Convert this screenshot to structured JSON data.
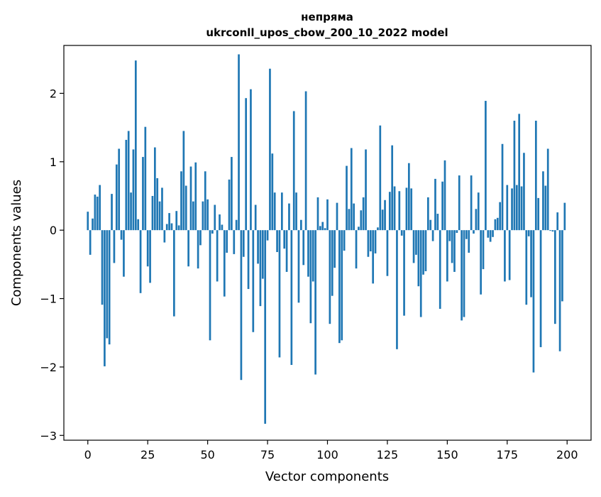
{
  "chart_data": {
    "type": "bar",
    "title_line1": "непряма",
    "title_line2": "ukrconll_upos_cbow_200_10_2022 model",
    "xlabel": "Vector components",
    "ylabel": "Components values",
    "xlim": [
      -10,
      210
    ],
    "ylim": [
      -3.07,
      2.7
    ],
    "x_ticks": [
      0,
      25,
      50,
      75,
      100,
      125,
      150,
      175,
      200
    ],
    "y_ticks": [
      -3,
      -2,
      -1,
      0,
      1,
      2
    ],
    "x_tick_labels": [
      "0",
      "25",
      "50",
      "75",
      "100",
      "125",
      "150",
      "175",
      "200"
    ],
    "y_tick_labels": [
      "−3",
      "−2",
      "−1",
      "0",
      "1",
      "2"
    ],
    "bar_color": "#1f77b4",
    "values": [
      0.27,
      -0.36,
      0.17,
      0.52,
      0.49,
      0.66,
      -1.09,
      -1.99,
      -1.58,
      -1.67,
      0.53,
      -0.48,
      0.96,
      1.19,
      -0.14,
      -0.68,
      1.32,
      1.45,
      0.55,
      1.18,
      2.48,
      0.16,
      -0.92,
      1.07,
      1.51,
      -0.53,
      -0.77,
      0.5,
      1.21,
      0.76,
      0.42,
      0.62,
      -0.18,
      0.09,
      0.25,
      0.1,
      -1.26,
      0.28,
      0.07,
      0.86,
      1.45,
      0.65,
      -0.53,
      0.93,
      0.42,
      0.99,
      -0.56,
      -0.22,
      0.42,
      0.86,
      0.45,
      -1.61,
      -0.05,
      0.37,
      -0.75,
      0.23,
      0.08,
      -0.97,
      -0.33,
      0.74,
      1.07,
      -0.35,
      0.15,
      2.57,
      -2.19,
      -0.39,
      1.93,
      -0.86,
      2.06,
      -1.49,
      0.37,
      -0.49,
      -1.11,
      -0.71,
      -2.83,
      -0.15,
      2.36,
      1.12,
      0.55,
      -0.32,
      -1.86,
      0.55,
      -0.27,
      -0.61,
      0.39,
      -1.97,
      1.74,
      0.55,
      -1.06,
      0.15,
      -0.51,
      2.03,
      -0.68,
      -1.36,
      -0.75,
      -2.11,
      0.48,
      0.06,
      0.12,
      0.03,
      0.45,
      -1.37,
      -0.96,
      -0.55,
      0.4,
      -1.65,
      -1.61,
      -0.3,
      0.94,
      0.31,
      1.2,
      0.39,
      -0.56,
      0.05,
      0.29,
      0.48,
      1.18,
      -0.39,
      -0.31,
      -0.78,
      -0.34,
      0.04,
      1.53,
      0.3,
      0.44,
      -0.67,
      0.56,
      1.24,
      0.64,
      -1.74,
      0.57,
      -0.08,
      -1.25,
      0.62,
      0.98,
      0.61,
      -0.48,
      -0.36,
      -0.82,
      -1.27,
      -0.65,
      -0.6,
      0.48,
      0.15,
      -0.16,
      0.75,
      0.24,
      -1.15,
      0.71,
      1.02,
      -0.75,
      -0.16,
      -0.48,
      -0.61,
      -0.04,
      0.8,
      -1.32,
      -1.27,
      -0.13,
      -0.33,
      0.8,
      -0.05,
      0.31,
      0.55,
      -0.94,
      -0.57,
      1.89,
      -0.11,
      -0.17,
      -0.1,
      0.16,
      0.18,
      0.41,
      1.26,
      -0.75,
      0.66,
      -0.73,
      0.61,
      1.6,
      0.66,
      1.7,
      0.64,
      1.13,
      -1.09,
      -0.09,
      -0.98,
      -2.08,
      1.6,
      0.47,
      -1.71,
      0.86,
      0.65,
      1.19,
      -0.01,
      -0.02,
      -1.37,
      0.26,
      -1.77,
      -1.04,
      0.4
    ]
  }
}
